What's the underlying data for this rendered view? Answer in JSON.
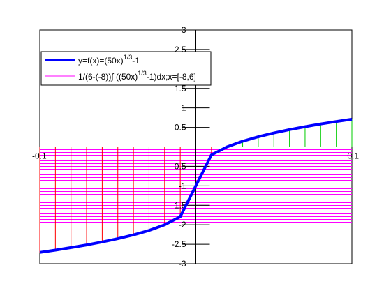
{
  "chart_data": {
    "type": "line",
    "xlim": [
      -0.1,
      0.1
    ],
    "ylim": [
      -3,
      3
    ],
    "x_tick_labels": [
      {
        "value": -0.1,
        "label": "-0.1"
      },
      {
        "value": 0.1,
        "label": "0.1"
      }
    ],
    "y_tick_labels": [
      {
        "value": 3,
        "label": "3"
      },
      {
        "value": 2.5,
        "label": "2.5"
      },
      {
        "value": 1.5,
        "label": "1.5"
      },
      {
        "value": 1,
        "label": "1"
      },
      {
        "value": 0.5,
        "label": "0.5"
      },
      {
        "value": -0.5,
        "label": "-0.5"
      },
      {
        "value": -1,
        "label": "-1"
      },
      {
        "value": -1.5,
        "label": "-1.5"
      },
      {
        "value": -2,
        "label": "-2"
      },
      {
        "value": -2.5,
        "label": "-2.5"
      },
      {
        "value": -3,
        "label": "-3"
      }
    ],
    "grid": false,
    "legend_position": "top-left",
    "series": [
      {
        "name": "y=f(x)=(50x)^(1/3)-1",
        "legend_main": "y=f(x)=(50x)",
        "legend_sup": "1/3",
        "legend_tail": "-1",
        "color": "#0000ff",
        "x": [
          -0.1,
          -0.09,
          -0.08,
          -0.07,
          -0.06,
          -0.05,
          -0.04,
          -0.03,
          -0.02,
          -0.01,
          0.0,
          0.01,
          0.02,
          0.03,
          0.04,
          0.05,
          0.06,
          0.07,
          0.08,
          0.09,
          0.1
        ],
        "y": [
          -2.71,
          -2.651,
          -2.587,
          -2.518,
          -2.442,
          -2.357,
          -2.26,
          -2.145,
          -2.0,
          -1.794,
          -1.0,
          -0.206,
          0.0,
          0.145,
          0.26,
          0.357,
          0.442,
          0.518,
          0.587,
          0.651,
          0.71
        ]
      },
      {
        "name": "1/(6-(-8))∫((50x)^(1/3)-1)dx;x=[-8,6]",
        "legend_main": "1/(6-(-8))∫ ((50x)",
        "legend_sup": "1/3",
        "legend_tail": "-1)dx;x=[-8,6]",
        "color": "#ff00ff",
        "y_from": 0,
        "y_to": -2
      }
    ],
    "fill_region": {
      "y_positive_color": "#00cc00",
      "y_negative_color": "#ff0000"
    }
  }
}
